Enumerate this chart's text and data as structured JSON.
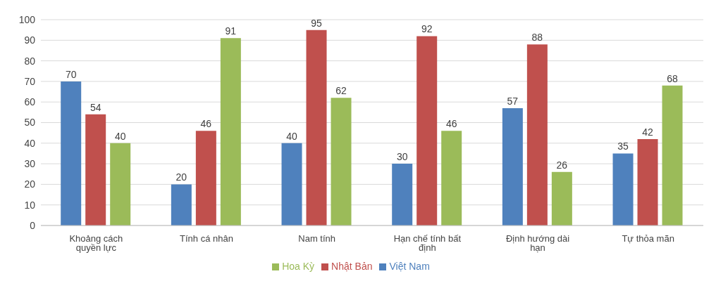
{
  "chart_data": {
    "type": "bar",
    "categories": [
      "Khoảng cách quyền lực",
      "Tính cá nhân",
      "Nam tính",
      "Hạn chế tính bất định",
      "Định hướng dài hạn",
      "Tự thỏa mãn"
    ],
    "series": [
      {
        "name": "Việt Nam",
        "color": "#4f81bd",
        "values": [
          70,
          20,
          40,
          30,
          57,
          35
        ]
      },
      {
        "name": "Nhật Bản",
        "color": "#c0504d",
        "values": [
          54,
          46,
          95,
          92,
          88,
          42
        ]
      },
      {
        "name": "Hoa Kỳ",
        "color": "#9bbb59",
        "values": [
          40,
          91,
          62,
          46,
          26,
          68
        ]
      }
    ],
    "ylim": [
      0,
      100
    ],
    "yticks": [
      0,
      10,
      20,
      30,
      40,
      50,
      60,
      70,
      80,
      90,
      100
    ],
    "grid": "y",
    "legend": "bottom",
    "data_labels": true
  }
}
